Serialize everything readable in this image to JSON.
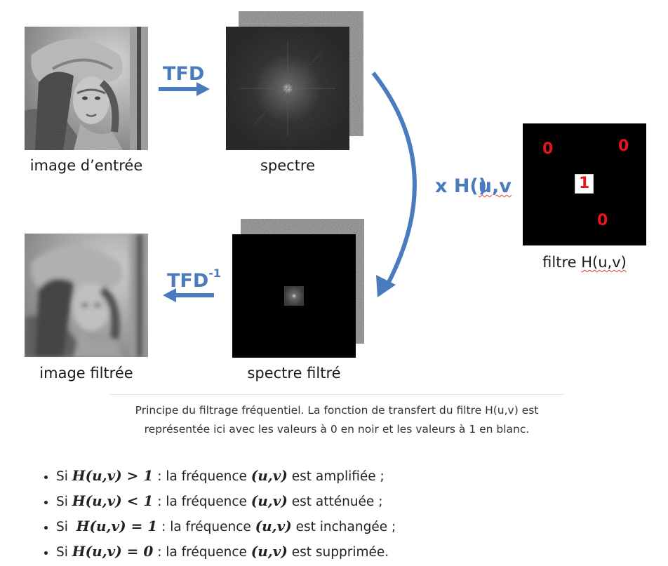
{
  "diagram": {
    "labels": {
      "input_image": "image d’entrée",
      "spectrum": "spectre",
      "filtered_image": "image filtrée",
      "filtered_spectrum": "spectre filtré",
      "filter_prefix": "filtre ",
      "filter_name": "H(u,v)"
    },
    "arrows": {
      "forward": "TFD",
      "inverse_base": "TFD",
      "inverse_exp": "-1",
      "multiply_prefix": "x H(",
      "multiply_args": "u,v",
      "multiply_suffix": ")"
    },
    "filter_values": {
      "top_left": "0",
      "top_right": "0",
      "center": "1",
      "bottom": "0"
    },
    "colors": {
      "arrow_blue": "#4a7bbf",
      "filter_digit_red": "#e8141b",
      "spellcheck_red": "#e04040"
    }
  },
  "caption": {
    "line1": "Principe du filtrage fréquentiel. La fonction de transfert du filtre H(u,v) est",
    "line2": "représentée ici avec les valeurs à 0 en noir et les valeurs à 1 en blanc."
  },
  "bullets": [
    {
      "prefix": "Si ",
      "expr": "H(u,v) > 1",
      "mid": " : la fréquence ",
      "var": "(u,v)",
      "suffix": " est amplifiée ;"
    },
    {
      "prefix": "Si ",
      "expr": "H(u,v) < 1",
      "mid": " : la fréquence ",
      "var": "(u,v)",
      "suffix": " est atténuée ;"
    },
    {
      "prefix": "Si  ",
      "expr": "H(u,v) = 1",
      "mid": " : la fréquence ",
      "var": "(u,v)",
      "suffix": " est inchangée ;"
    },
    {
      "prefix": "Si ",
      "expr": "H(u,v) = 0",
      "mid": " : la fréquence ",
      "var": "(u,v)",
      "suffix": " est supprimée."
    }
  ]
}
